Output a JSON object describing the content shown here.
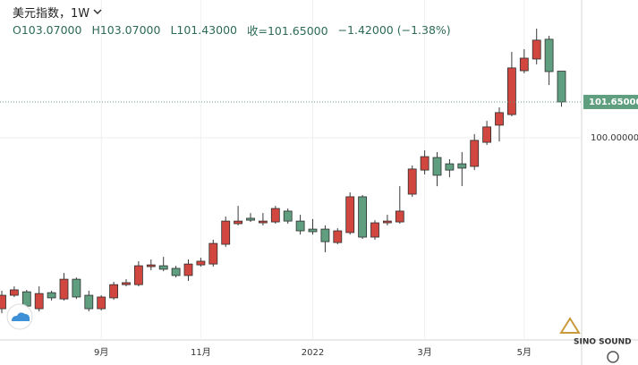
{
  "chart_data": {
    "type": "candlestick",
    "title": "美元指数，1W",
    "ohlc_header": [
      "O103.07000",
      "H103.07000",
      "L101.43000",
      "收=101.65000",
      "−1.42000 (−1.38%)"
    ],
    "categories": [
      null,
      null,
      null,
      null,
      null,
      null,
      null,
      null,
      "9月",
      null,
      null,
      null,
      null,
      null,
      null,
      null,
      "11月",
      null,
      null,
      null,
      null,
      null,
      null,
      null,
      null,
      "2022",
      null,
      null,
      null,
      null,
      null,
      null,
      null,
      null,
      "3月",
      null,
      null,
      null,
      null,
      null,
      null,
      null,
      "5月",
      null,
      null,
      null
    ],
    "open": [
      92.12,
      92.74,
      92.9,
      92.12,
      92.86,
      92.57,
      93.48,
      92.74,
      92.12,
      92.62,
      93.23,
      93.23,
      94.06,
      94.1,
      93.98,
      93.65,
      94.14,
      94.18,
      95.09,
      96.04,
      96.29,
      96.08,
      96.12,
      96.62,
      96.16,
      95.79,
      95.79,
      95.17,
      95.63,
      97.28,
      95.42,
      96.08,
      96.12,
      97.4,
      98.51,
      99.09,
      98.8,
      98.8,
      98.68,
      99.79,
      100.58,
      101.07,
      103.09,
      103.63,
      104.54,
      103.07
    ],
    "high": [
      92.95,
      93.15,
      92.99,
      93.15,
      92.95,
      93.77,
      93.56,
      92.95,
      92.74,
      93.36,
      93.48,
      94.31,
      94.39,
      94.51,
      94.1,
      94.39,
      94.47,
      95.3,
      96.37,
      96.86,
      96.53,
      96.53,
      96.86,
      96.74,
      96.45,
      96.25,
      95.96,
      95.83,
      97.48,
      97.36,
      96.2,
      96.45,
      97.77,
      98.72,
      99.42,
      99.34,
      99.01,
      99.34,
      100.17,
      100.78,
      101.4,
      103.96,
      104.08,
      105.03,
      104.7,
      103.07
    ],
    "low": [
      91.91,
      92.66,
      92.12,
      92.0,
      92.5,
      92.5,
      92.57,
      92.0,
      92.04,
      92.53,
      93.15,
      93.15,
      93.89,
      93.85,
      93.56,
      93.4,
      94.06,
      94.06,
      94.97,
      95.96,
      96.12,
      95.96,
      96.04,
      96.04,
      95.54,
      95.54,
      94.72,
      95.09,
      95.54,
      95.34,
      95.3,
      95.96,
      96.04,
      97.28,
      98.31,
      97.77,
      98.18,
      97.77,
      98.51,
      99.67,
      99.83,
      100.99,
      102.97,
      103.38,
      102.43,
      101.43
    ],
    "close": [
      92.74,
      92.99,
      92.24,
      92.82,
      92.62,
      93.48,
      92.66,
      92.12,
      92.66,
      93.23,
      93.32,
      94.1,
      94.14,
      93.94,
      93.65,
      94.18,
      94.31,
      95.13,
      96.16,
      96.16,
      96.2,
      96.16,
      96.74,
      96.16,
      95.71,
      95.67,
      95.21,
      95.71,
      97.28,
      95.42,
      96.08,
      96.16,
      96.62,
      98.56,
      99.13,
      98.27,
      98.51,
      98.6,
      99.88,
      100.5,
      101.16,
      103.22,
      103.67,
      104.5,
      103.05,
      101.65
    ],
    "up_color": "#d1473f",
    "down_color": "#5f9f80",
    "ylim": [
      90.68,
      106.35
    ],
    "yticks": [
      {
        "value": 100,
        "label": "100.00000"
      }
    ],
    "last_price": {
      "value": 101.65,
      "label": "101.65000"
    },
    "grid": true,
    "watermark": "SINO SOUND"
  }
}
